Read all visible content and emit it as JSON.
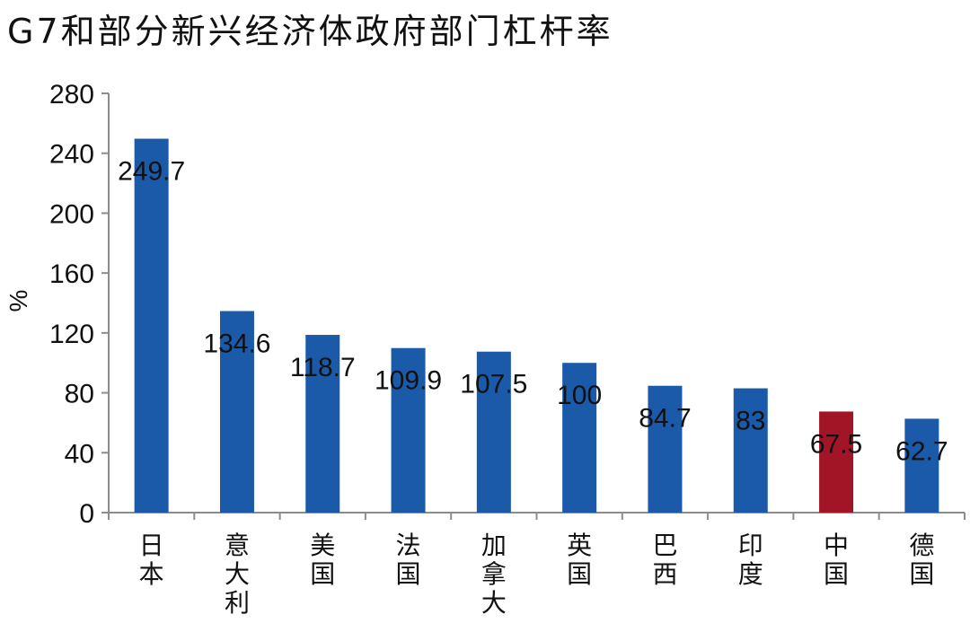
{
  "title": "G7和部分新兴经济体政府部门杠杆率",
  "chart_data": {
    "type": "bar",
    "title": "G7和部分新兴经济体政府部门杠杆率",
    "xlabel": "",
    "ylabel": "%",
    "ylim": [
      0,
      280
    ],
    "yticks": [
      0,
      40,
      80,
      120,
      160,
      200,
      240,
      280
    ],
    "grid": false,
    "legend": "none",
    "categories": [
      "日本",
      "意大利",
      "美国",
      "法国",
      "加拿大",
      "英国",
      "巴西",
      "印度",
      "中国",
      "德国"
    ],
    "values": [
      249.7,
      134.6,
      118.7,
      109.9,
      107.5,
      100,
      84.7,
      83,
      67.5,
      62.7
    ],
    "value_labels": [
      "249.7",
      "134.6",
      "118.7",
      "109.9",
      "107.5",
      "100",
      "84.7",
      "83",
      "67.5",
      "62.7"
    ],
    "bar_colors": [
      "#1a5aa8",
      "#1a5aa8",
      "#1a5aa8",
      "#1a5aa8",
      "#1a5aa8",
      "#1a5aa8",
      "#1a5aa8",
      "#1a5aa8",
      "#a11526",
      "#1a5aa8"
    ]
  }
}
